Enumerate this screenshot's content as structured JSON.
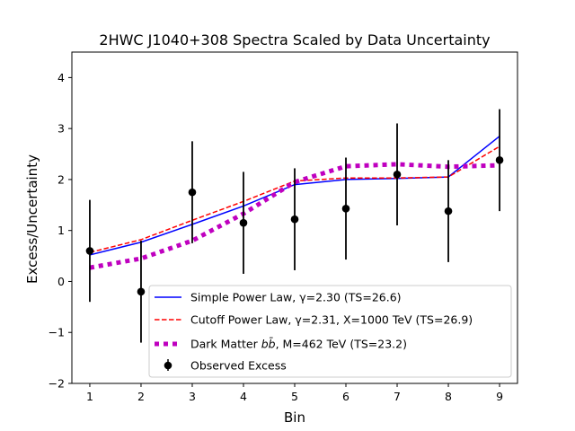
{
  "chart_data": {
    "type": "line",
    "title": "2HWC J1040+308 Spectra Scaled by Data Uncertainty",
    "xlabel": "Bin",
    "ylabel": "Excess/Uncertainty",
    "xlim": [
      0.65,
      9.35
    ],
    "ylim": [
      -2,
      4.5
    ],
    "xticks": [
      1,
      2,
      3,
      4,
      5,
      6,
      7,
      8,
      9
    ],
    "yticks": [
      -2,
      -1,
      0,
      1,
      2,
      3,
      4
    ],
    "ytick_labels": [
      "−2",
      "−1",
      "0",
      "1",
      "2",
      "3",
      "4"
    ],
    "x": [
      1,
      2,
      3,
      4,
      5,
      6,
      7,
      8,
      9
    ],
    "series": [
      {
        "name": "Simple Power Law",
        "legend_label": "Simple Power Law, γ=2.30 (TS=26.6)",
        "style": "solid",
        "color": "#0000ff",
        "values": [
          0.52,
          0.77,
          1.12,
          1.48,
          1.9,
          2.0,
          2.02,
          2.05,
          2.85
        ]
      },
      {
        "name": "Cutoff Power Law",
        "legend_label": "Cutoff Power Law, γ=2.31, X=1000 TeV (TS=26.9)",
        "style": "dashed",
        "color": "#ff0000",
        "values": [
          0.57,
          0.82,
          1.2,
          1.57,
          1.97,
          2.03,
          2.03,
          2.05,
          2.65
        ]
      },
      {
        "name": "Dark Matter bb",
        "legend_label_prefix": "Dark Matter ",
        "legend_label_symbol": "bb̄",
        "legend_label_suffix": ", M=462 TeV (TS=23.2)",
        "style": "dotted",
        "color": "#bf00bf",
        "values": [
          0.27,
          0.45,
          0.8,
          1.33,
          1.95,
          2.26,
          2.3,
          2.25,
          2.28
        ]
      }
    ],
    "observed": {
      "name": "Observed Excess",
      "legend_label": "Observed Excess",
      "color": "#000000",
      "values": [
        0.6,
        -0.2,
        1.75,
        1.15,
        1.22,
        1.43,
        2.1,
        1.38,
        2.38
      ],
      "errors": [
        1.0,
        1.0,
        1.0,
        1.0,
        1.0,
        1.0,
        1.0,
        1.0,
        1.0
      ]
    },
    "legend_position": "lower-right",
    "grid": false
  }
}
